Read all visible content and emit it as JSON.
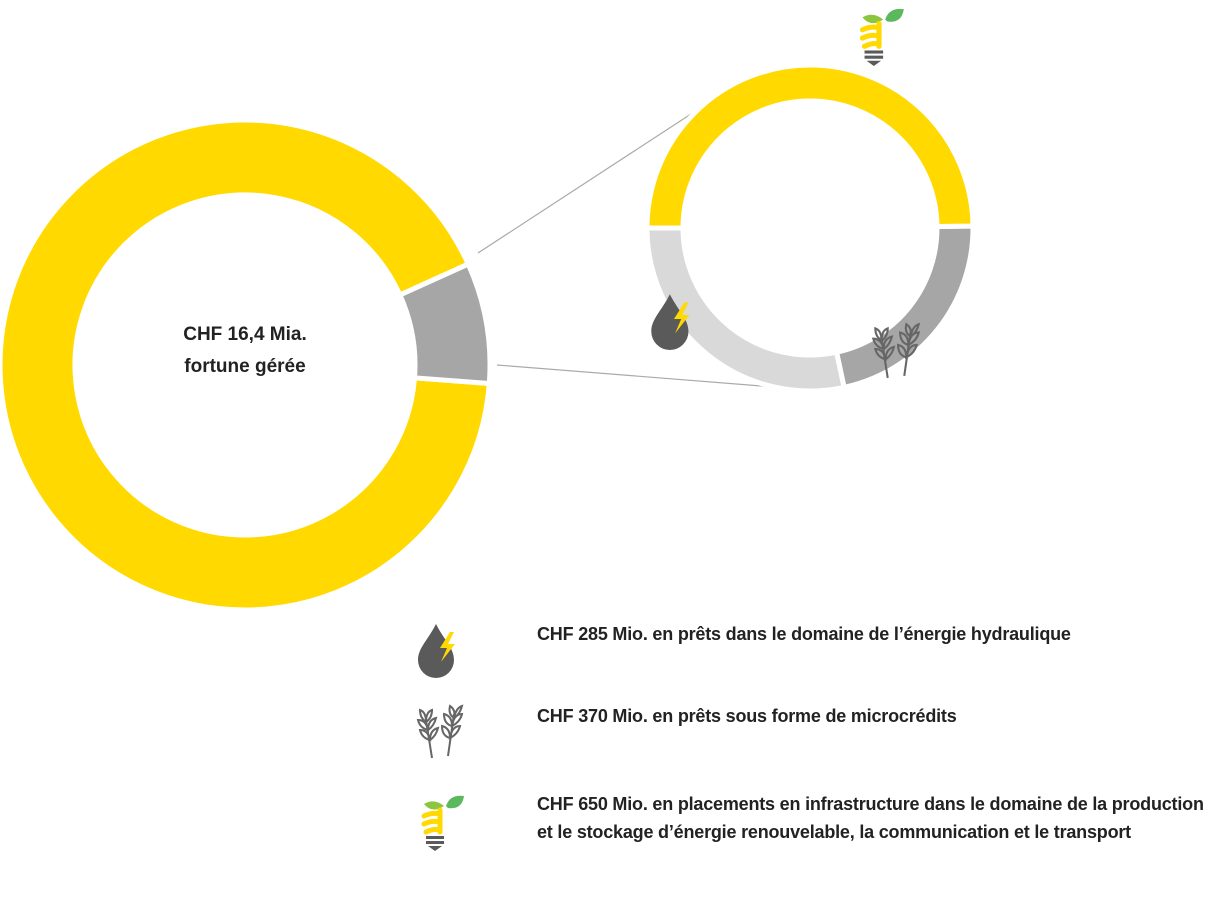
{
  "chart_data": {
    "type": "pie-of-pie",
    "total": {
      "value": 16400,
      "label": "CHF 16,4 Mia."
    },
    "total_caption": "fortune gérée",
    "colors": {
      "rest": "#ffd900",
      "detail": "#a6a6a6"
    },
    "segments": [
      {
        "value": 285,
        "label": "CHF 285 Mio. en prêts dans le domaine de l’énergie hydraulique",
        "color": "#a6a6a6",
        "icon": "drop"
      },
      {
        "value": 370,
        "label": "CHF 370 Mio. en prêts sous forme de microcrédits",
        "color": "#d9d9d9",
        "icon": "wheat"
      },
      {
        "value": 650,
        "label": "CHF 650 Mio. en placements en infrastructure dans le domaine de la production et le stockage d’énergie renouvelable, la communication et le transport",
        "color": "#ffd900",
        "icon": "bulb"
      }
    ]
  }
}
